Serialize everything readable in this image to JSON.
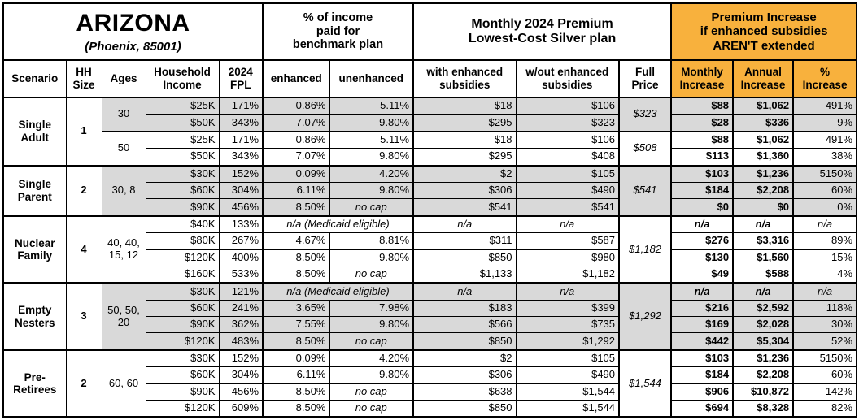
{
  "colors": {
    "shade_gray": "#D9D9D9",
    "accent_orange": "#F8B13D",
    "border": "#000000"
  },
  "title": {
    "state": "ARIZONA",
    "location": "(Phoenix, 85001)"
  },
  "header_groups": {
    "benchmark": "% of income\npaid for\nbenchmark plan",
    "premium": "Monthly 2024 Premium\nLowest-Cost Silver plan",
    "increase": "Premium Increase\nif enhanced subsidies\nAREN'T extended"
  },
  "columns": {
    "scenario": "Scenario",
    "hh_size": "HH\nSize",
    "ages": "Ages",
    "income": "Household\nIncome",
    "fpl": "2024\nFPL",
    "enhanced": "enhanced",
    "unenhanced": "unenhanced",
    "with_sub": "with enhanced\nsubsidies",
    "wout_sub": "w/out enhanced\nsubsidies",
    "full_price": "Full\nPrice",
    "monthly_inc": "Monthly\nIncrease",
    "annual_inc": "Annual\nIncrease",
    "pct_inc": "%\nIncrease"
  },
  "medicaid_label": "n/a (Medicaid eligible)",
  "na_label": "n/a",
  "no_cap_label": "no cap",
  "groups": [
    {
      "scenario": "Single\nAdult",
      "hh_size": "1",
      "subgroups": [
        {
          "ages": "30",
          "shaded": true,
          "full_price": "$323",
          "rows": [
            {
              "income": "$25K",
              "fpl": "171%",
              "enhanced": "0.86%",
              "unenhanced": "5.11%",
              "with_sub": "$18",
              "wout_sub": "$106",
              "monthly": "$88",
              "annual": "$1,062",
              "pct": "491%"
            },
            {
              "income": "$50K",
              "fpl": "343%",
              "enhanced": "7.07%",
              "unenhanced": "9.80%",
              "with_sub": "$295",
              "wout_sub": "$323",
              "monthly": "$28",
              "annual": "$336",
              "pct": "9%"
            }
          ]
        },
        {
          "ages": "50",
          "shaded": false,
          "full_price": "$508",
          "rows": [
            {
              "income": "$25K",
              "fpl": "171%",
              "enhanced": "0.86%",
              "unenhanced": "5.11%",
              "with_sub": "$18",
              "wout_sub": "$106",
              "monthly": "$88",
              "annual": "$1,062",
              "pct": "491%"
            },
            {
              "income": "$50K",
              "fpl": "343%",
              "enhanced": "7.07%",
              "unenhanced": "9.80%",
              "with_sub": "$295",
              "wout_sub": "$408",
              "monthly": "$113",
              "annual": "$1,360",
              "pct": "38%"
            }
          ]
        }
      ]
    },
    {
      "scenario": "Single\nParent",
      "hh_size": "2",
      "subgroups": [
        {
          "ages": "30, 8",
          "shaded": true,
          "full_price": "$541",
          "rows": [
            {
              "income": "$30K",
              "fpl": "152%",
              "enhanced": "0.09%",
              "unenhanced": "4.20%",
              "with_sub": "$2",
              "wout_sub": "$105",
              "monthly": "$103",
              "annual": "$1,236",
              "pct": "5150%"
            },
            {
              "income": "$60K",
              "fpl": "304%",
              "enhanced": "6.11%",
              "unenhanced": "9.80%",
              "with_sub": "$306",
              "wout_sub": "$490",
              "monthly": "$184",
              "annual": "$2,208",
              "pct": "60%"
            },
            {
              "income": "$90K",
              "fpl": "456%",
              "enhanced": "8.50%",
              "unenhanced": "no cap",
              "with_sub": "$541",
              "wout_sub": "$541",
              "monthly": "$0",
              "annual": "$0",
              "pct": "0%"
            }
          ]
        }
      ]
    },
    {
      "scenario": "Nuclear\nFamily",
      "hh_size": "4",
      "subgroups": [
        {
          "ages": "40, 40, 15, 12",
          "shaded": false,
          "full_price": "$1,182",
          "rows": [
            {
              "income": "$40K",
              "fpl": "133%",
              "medicaid": true,
              "with_sub": "n/a",
              "wout_sub": "n/a",
              "monthly": "n/a",
              "annual": "n/a",
              "pct": "n/a"
            },
            {
              "income": "$80K",
              "fpl": "267%",
              "enhanced": "4.67%",
              "unenhanced": "8.81%",
              "with_sub": "$311",
              "wout_sub": "$587",
              "monthly": "$276",
              "annual": "$3,316",
              "pct": "89%"
            },
            {
              "income": "$120K",
              "fpl": "400%",
              "enhanced": "8.50%",
              "unenhanced": "9.80%",
              "with_sub": "$850",
              "wout_sub": "$980",
              "monthly": "$130",
              "annual": "$1,560",
              "pct": "15%"
            },
            {
              "income": "$160K",
              "fpl": "533%",
              "enhanced": "8.50%",
              "unenhanced": "no cap",
              "with_sub": "$1,133",
              "wout_sub": "$1,182",
              "monthly": "$49",
              "annual": "$588",
              "pct": "4%"
            }
          ]
        }
      ]
    },
    {
      "scenario": "Empty\nNesters",
      "hh_size": "3",
      "subgroups": [
        {
          "ages": "50, 50, 20",
          "shaded": true,
          "full_price": "$1,292",
          "rows": [
            {
              "income": "$30K",
              "fpl": "121%",
              "medicaid": true,
              "with_sub": "n/a",
              "wout_sub": "n/a",
              "monthly": "n/a",
              "annual": "n/a",
              "pct": "n/a"
            },
            {
              "income": "$60K",
              "fpl": "241%",
              "enhanced": "3.65%",
              "unenhanced": "7.98%",
              "with_sub": "$183",
              "wout_sub": "$399",
              "monthly": "$216",
              "annual": "$2,592",
              "pct": "118%"
            },
            {
              "income": "$90K",
              "fpl": "362%",
              "enhanced": "7.55%",
              "unenhanced": "9.80%",
              "with_sub": "$566",
              "wout_sub": "$735",
              "monthly": "$169",
              "annual": "$2,028",
              "pct": "30%"
            },
            {
              "income": "$120K",
              "fpl": "483%",
              "enhanced": "8.50%",
              "unenhanced": "no cap",
              "with_sub": "$850",
              "wout_sub": "$1,292",
              "monthly": "$442",
              "annual": "$5,304",
              "pct": "52%"
            }
          ]
        }
      ]
    },
    {
      "scenario": "Pre-\nRetirees",
      "hh_size": "2",
      "subgroups": [
        {
          "ages": "60, 60",
          "shaded": false,
          "full_price": "$1,544",
          "rows": [
            {
              "income": "$30K",
              "fpl": "152%",
              "enhanced": "0.09%",
              "unenhanced": "4.20%",
              "with_sub": "$2",
              "wout_sub": "$105",
              "monthly": "$103",
              "annual": "$1,236",
              "pct": "5150%"
            },
            {
              "income": "$60K",
              "fpl": "304%",
              "enhanced": "6.11%",
              "unenhanced": "9.80%",
              "with_sub": "$306",
              "wout_sub": "$490",
              "monthly": "$184",
              "annual": "$2,208",
              "pct": "60%"
            },
            {
              "income": "$90K",
              "fpl": "456%",
              "enhanced": "8.50%",
              "unenhanced": "no cap",
              "with_sub": "$638",
              "wout_sub": "$1,544",
              "monthly": "$906",
              "annual": "$10,872",
              "pct": "142%"
            },
            {
              "income": "$120K",
              "fpl": "609%",
              "enhanced": "8.50%",
              "unenhanced": "no cap",
              "with_sub": "$850",
              "wout_sub": "$1,544",
              "monthly": "$694",
              "annual": "$8,328",
              "pct": "82%"
            }
          ]
        }
      ]
    }
  ]
}
